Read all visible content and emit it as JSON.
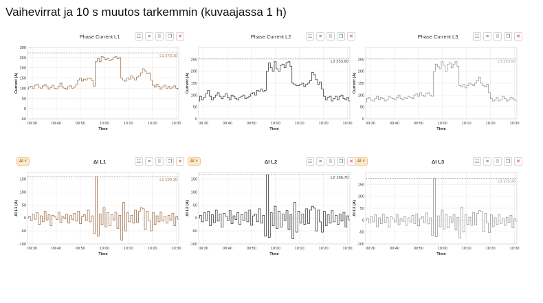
{
  "page": {
    "title": "Vaihevirrat ja 10 s muutos tarkemmin (kuvaajassa 1 h)"
  },
  "toolbar_icons": [
    "settings-icon",
    "menu-icon",
    "grid-icon",
    "copy-icon",
    "close-icon"
  ],
  "toolbar_glyphs": [
    "☷",
    "≡",
    "⠿",
    "❐",
    "✕"
  ],
  "panels": [
    {
      "title": "Phase Current L1",
      "tag": ""
    },
    {
      "title": "Phase Current L2",
      "tag": ""
    },
    {
      "title": "Phase Current L3",
      "tag": ""
    },
    {
      "title": "ΔI L1",
      "tag": "ΔI ×"
    },
    {
      "title": "ΔI L2",
      "tag": "ΔI ×"
    },
    {
      "title": "ΔI L3",
      "tag": "ΔI ×"
    }
  ],
  "chart_data": [
    {
      "type": "line",
      "title": "Phase Current L1",
      "xlabel": "Time",
      "ylabel": "Current (A)",
      "xticks": [
        "09:30",
        "09:40",
        "09:50",
        "10:00",
        "10:10",
        "10:20",
        "10:30"
      ],
      "ylim": [
        -50,
        300
      ],
      "yticks": [
        -50,
        0,
        50,
        100,
        150,
        200,
        250,
        300
      ],
      "reference_line": {
        "label": "L1 273.10",
        "value": 273.1
      },
      "color": "#a0704c",
      "series": [
        {
          "x_range": [
            "09:28",
            "10:31"
          ],
          "values": [
            95,
            105,
            110,
            100,
            115,
            120,
            105,
            100,
            112,
            118,
            108,
            95,
            104,
            115,
            100,
            96,
            110,
            125,
            105,
            100,
            95,
            108,
            112,
            100,
            105,
            118,
            140,
            150,
            135,
            145,
            140,
            150,
            148,
            138,
            110,
            230,
            245,
            230,
            255,
            250,
            240,
            245,
            235,
            240,
            250,
            255,
            245,
            250,
            150,
            140,
            135,
            150,
            145,
            160,
            150,
            140,
            155,
            160,
            175,
            195,
            185,
            170,
            175,
            140,
            115,
            105,
            120,
            110,
            95,
            105,
            115,
            100,
            110,
            98,
            105,
            112,
            100,
            95
          ]
        }
      ]
    },
    {
      "type": "line",
      "title": "Phase Current L2",
      "xlabel": "Time",
      "ylabel": "Current (A)",
      "xticks": [
        "09:30",
        "09:40",
        "09:50",
        "10:00",
        "10:10",
        "10:20",
        "10:30"
      ],
      "ylim": [
        0,
        300
      ],
      "yticks": [
        0,
        50,
        100,
        150,
        200,
        250
      ],
      "reference_line": {
        "label": "L2 253.60",
        "value": 253.6
      },
      "color": "#3a3a3a",
      "series": [
        {
          "x_range": [
            "09:28",
            "10:31"
          ],
          "values": [
            75,
            95,
            80,
            90,
            105,
            120,
            95,
            80,
            90,
            100,
            110,
            95,
            85,
            95,
            105,
            90,
            80,
            100,
            95,
            85,
            80,
            90,
            95,
            100,
            85,
            90,
            95,
            105,
            110,
            100,
            120,
            115,
            125,
            115,
            120,
            200,
            235,
            215,
            200,
            240,
            210,
            200,
            225,
            230,
            215,
            235,
            240,
            220,
            150,
            145,
            140,
            140,
            145,
            150,
            135,
            145,
            150,
            160,
            195,
            185,
            165,
            145,
            155,
            125,
            95,
            80,
            90,
            95,
            75,
            85,
            95,
            80,
            95,
            100,
            85,
            80,
            90,
            75
          ]
        }
      ]
    },
    {
      "type": "line",
      "title": "Phase Current L3",
      "xlabel": "Time",
      "ylabel": "Current (A)",
      "xticks": [
        "09:30",
        "09:40",
        "09:50",
        "10:00",
        "10:10",
        "10:20",
        "10:30"
      ],
      "ylim": [
        0,
        300
      ],
      "yticks": [
        0,
        50,
        100,
        150,
        200,
        250
      ],
      "reference_line": {
        "label": "L3 253.50",
        "value": 253.5
      },
      "color": "#9a9a9a",
      "series": [
        {
          "x_range": [
            "09:28",
            "10:31"
          ],
          "values": [
            70,
            85,
            90,
            80,
            75,
            85,
            95,
            80,
            90,
            85,
            75,
            80,
            95,
            90,
            85,
            80,
            90,
            100,
            85,
            80,
            90,
            85,
            95,
            90,
            85,
            100,
            105,
            95,
            110,
            100,
            95,
            105,
            110,
            100,
            95,
            200,
            230,
            220,
            210,
            240,
            225,
            200,
            230,
            235,
            215,
            230,
            240,
            220,
            140,
            135,
            145,
            130,
            140,
            150,
            145,
            140,
            150,
            160,
            175,
            150,
            140,
            135,
            145,
            110,
            85,
            75,
            80,
            90,
            75,
            80,
            95,
            85,
            75,
            80,
            90,
            85,
            80,
            75
          ]
        }
      ]
    },
    {
      "type": "line",
      "title": "ΔI L1",
      "xlabel": "Time",
      "ylabel": "ΔI L1 (A)",
      "xticks": [
        "09:30",
        "09:40",
        "09:50",
        "10:00",
        "10:10",
        "10:20",
        "10:30"
      ],
      "ylim": [
        -100,
        175
      ],
      "yticks": [
        -100,
        -50,
        0,
        50,
        100,
        150
      ],
      "reference_line": {
        "label": "L1 159.10",
        "value": 159.1
      },
      "color": "#a0704c",
      "series": [
        {
          "x_range": [
            "09:28",
            "10:31"
          ],
          "values": [
            0,
            5,
            -10,
            15,
            -5,
            20,
            -25,
            8,
            -15,
            25,
            -8,
            12,
            -30,
            10,
            4,
            -6,
            22,
            -18,
            6,
            -3,
            14,
            -20,
            9,
            -7,
            18,
            -12,
            25,
            -22,
            5,
            12,
            -10,
            30,
            -15,
            8,
            -60,
            159,
            -70,
            15,
            -25,
            40,
            -35,
            20,
            -30,
            12,
            -8,
            22,
            -40,
            10,
            -85,
            60,
            -50,
            20,
            -15,
            10,
            -20,
            30,
            -18,
            25,
            40,
            35,
            -45,
            25,
            -10,
            -50,
            20,
            -25,
            8,
            -15,
            22,
            -12,
            6,
            -20,
            10,
            -8,
            18,
            -30,
            5,
            -5
          ]
        }
      ]
    },
    {
      "type": "line",
      "title": "ΔI L2",
      "xlabel": "Time",
      "ylabel": "ΔI L2 (A)",
      "xticks": [
        "09:30",
        "09:40",
        "09:50",
        "10:00",
        "10:10",
        "10:20",
        "10:30"
      ],
      "ylim": [
        -100,
        175
      ],
      "yticks": [
        -100,
        -50,
        0,
        50,
        100,
        150
      ],
      "reference_line": {
        "label": "L2 166.70",
        "value": 166.7
      },
      "color": "#3a3a3a",
      "series": [
        {
          "x_range": [
            "09:28",
            "10:31"
          ],
          "values": [
            0,
            10,
            -15,
            20,
            -10,
            25,
            -30,
            12,
            -18,
            30,
            -12,
            15,
            -35,
            18,
            6,
            -10,
            28,
            -22,
            8,
            -6,
            20,
            -25,
            12,
            -10,
            22,
            -15,
            30,
            -28,
            8,
            15,
            -14,
            35,
            -20,
            10,
            -70,
            166,
            -75,
            20,
            -30,
            45,
            -40,
            25,
            -35,
            15,
            -10,
            28,
            -45,
            12,
            -80,
            60,
            -55,
            25,
            -20,
            15,
            -25,
            35,
            -22,
            30,
            45,
            38,
            -50,
            30,
            -15,
            -55,
            25,
            -30,
            12,
            -20,
            28,
            -15,
            10,
            -25,
            15,
            -12,
            22,
            -35,
            8,
            -8
          ]
        }
      ]
    },
    {
      "type": "line",
      "title": "ΔI L3",
      "xlabel": "Time",
      "ylabel": "ΔI L3 (A)",
      "xticks": [
        "09:30",
        "09:40",
        "09:50",
        "10:00",
        "10:10",
        "10:20",
        "10:30"
      ],
      "ylim": [
        -100,
        200
      ],
      "yticks": [
        -100,
        -50,
        0,
        50,
        100,
        150
      ],
      "reference_line": {
        "label": "L3 175.30",
        "value": 175.3
      },
      "color": "#9a9a9a",
      "series": [
        {
          "x_range": [
            "09:28",
            "10:31"
          ],
          "values": [
            0,
            8,
            -12,
            15,
            -8,
            22,
            -28,
            10,
            -15,
            25,
            -10,
            12,
            -30,
            14,
            5,
            -8,
            24,
            -20,
            7,
            -5,
            16,
            -22,
            10,
            -8,
            20,
            -14,
            26,
            -24,
            6,
            14,
            -12,
            30,
            -16,
            9,
            -65,
            175,
            -70,
            18,
            -28,
            42,
            -38,
            22,
            -32,
            14,
            -9,
            24,
            -42,
            11,
            -75,
            55,
            -50,
            22,
            -18,
            12,
            -22,
            32,
            -20,
            28,
            40,
            36,
            -48,
            28,
            -12,
            -52,
            22,
            -28,
            10,
            -18,
            24,
            -14,
            8,
            -22,
            12,
            -10,
            20,
            -32,
            6,
            -6
          ]
        }
      ]
    }
  ]
}
